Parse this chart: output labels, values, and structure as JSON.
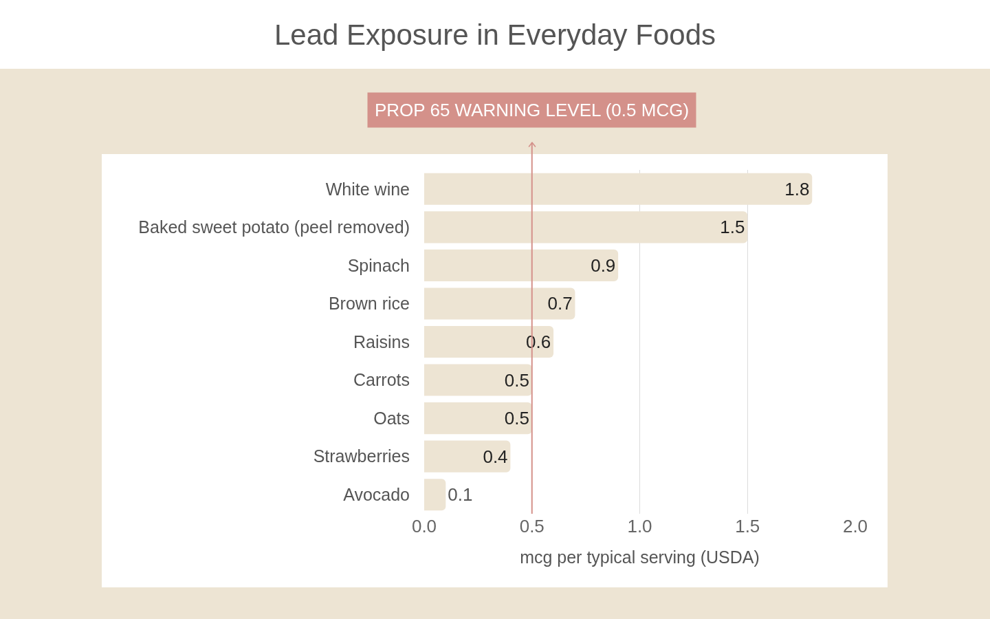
{
  "chart_data": {
    "type": "bar",
    "orientation": "horizontal",
    "title": "Lead Exposure in Everyday Foods",
    "xlabel": "mcg per typical serving (USDA)",
    "categories": [
      "White wine",
      "Baked sweet potato (peel removed)",
      "Spinach",
      "Brown rice",
      "Raisins",
      "Carrots",
      "Oats",
      "Strawberries",
      "Avocado"
    ],
    "values": [
      1.8,
      1.5,
      0.9,
      0.7,
      0.6,
      0.5,
      0.5,
      0.4,
      0.1
    ],
    "color": "#ede4d3",
    "xlim": [
      0,
      2
    ],
    "xticks": [
      {
        "value": 0,
        "label": "0.0"
      },
      0.5,
      {
        "value": 1,
        "label": "1.0"
      },
      1.5,
      {
        "value": 2,
        "label": "2.0"
      }
    ],
    "grid": "x",
    "data_labels": true,
    "ref_lines": [
      {
        "axis": "x",
        "value": 0.5,
        "label": "PROP 65 WARNING LEVEL (0.5 MCG)",
        "color": "#d4918a"
      }
    ]
  }
}
